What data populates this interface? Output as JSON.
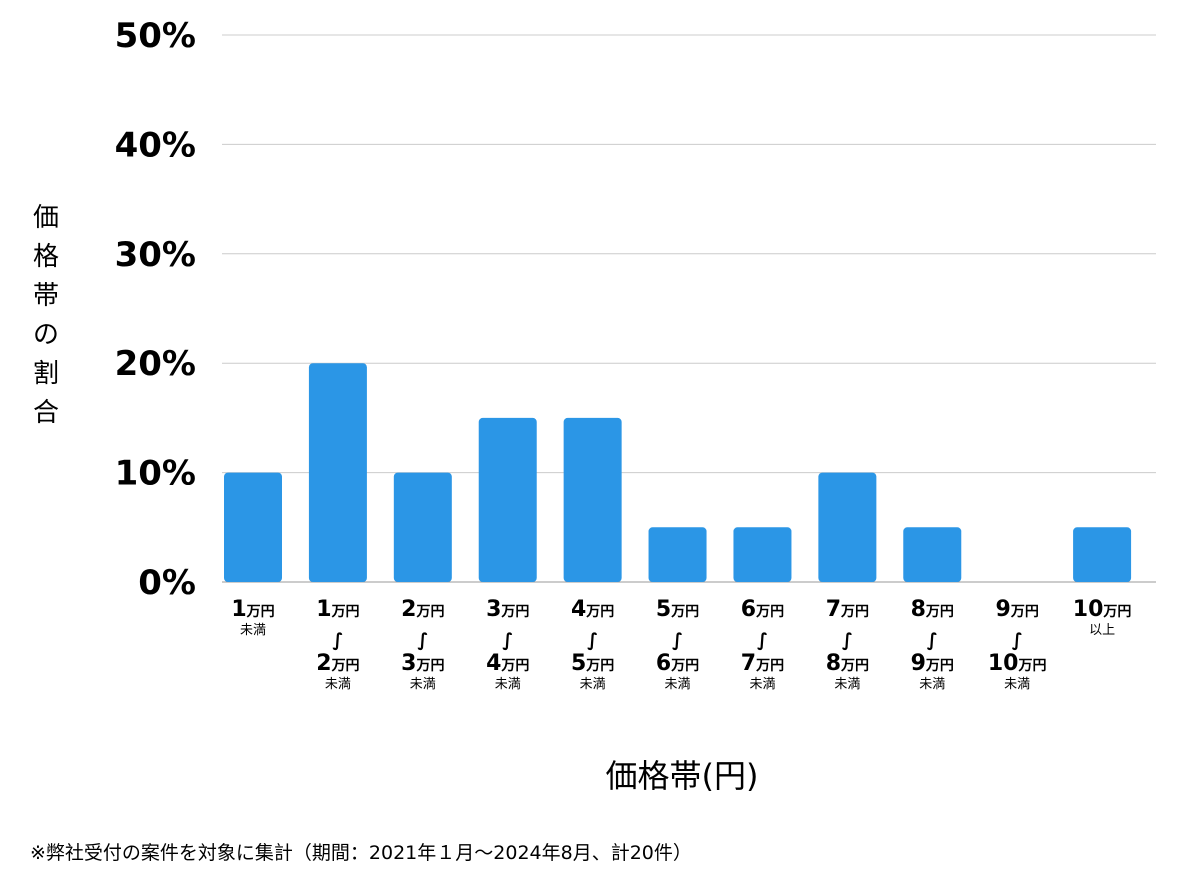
{
  "chart_data": {
    "type": "bar",
    "categories": [
      {
        "lines": [
          {
            "num": "1",
            "unit": "万円"
          }
        ],
        "sub": "未満"
      },
      {
        "lines": [
          {
            "num": "1",
            "unit": "万円"
          },
          {
            "tilde": "∫"
          },
          {
            "num": "2",
            "unit": "万円"
          }
        ],
        "sub": "未満"
      },
      {
        "lines": [
          {
            "num": "2",
            "unit": "万円"
          },
          {
            "tilde": "∫"
          },
          {
            "num": "3",
            "unit": "万円"
          }
        ],
        "sub": "未満"
      },
      {
        "lines": [
          {
            "num": "3",
            "unit": "万円"
          },
          {
            "tilde": "∫"
          },
          {
            "num": "4",
            "unit": "万円"
          }
        ],
        "sub": "未満"
      },
      {
        "lines": [
          {
            "num": "4",
            "unit": "万円"
          },
          {
            "tilde": "∫"
          },
          {
            "num": "5",
            "unit": "万円"
          }
        ],
        "sub": "未満"
      },
      {
        "lines": [
          {
            "num": "5",
            "unit": "万円"
          },
          {
            "tilde": "∫"
          },
          {
            "num": "6",
            "unit": "万円"
          }
        ],
        "sub": "未満"
      },
      {
        "lines": [
          {
            "num": "6",
            "unit": "万円"
          },
          {
            "tilde": "∫"
          },
          {
            "num": "7",
            "unit": "万円"
          }
        ],
        "sub": "未満"
      },
      {
        "lines": [
          {
            "num": "7",
            "unit": "万円"
          },
          {
            "tilde": "∫"
          },
          {
            "num": "8",
            "unit": "万円"
          }
        ],
        "sub": "未満"
      },
      {
        "lines": [
          {
            "num": "8",
            "unit": "万円"
          },
          {
            "tilde": "∫"
          },
          {
            "num": "9",
            "unit": "万円"
          }
        ],
        "sub": "未満"
      },
      {
        "lines": [
          {
            "num": "9",
            "unit": "万円"
          },
          {
            "tilde": "∫"
          },
          {
            "num": "10",
            "unit": "万円"
          }
        ],
        "sub": "未満"
      },
      {
        "lines": [
          {
            "num": "10",
            "unit": "万円"
          }
        ],
        "sub": "以上"
      }
    ],
    "values": [
      10,
      20,
      10,
      15,
      15,
      5,
      5,
      10,
      5,
      0,
      5
    ],
    "ylim": [
      0,
      50
    ],
    "yticks": [
      "0%",
      "10%",
      "20%",
      "30%",
      "40%",
      "50%"
    ],
    "ytick_values": [
      0,
      10,
      20,
      30,
      40,
      50
    ],
    "ylabel": "価格帯の割合",
    "xlabel": "価格帯(円)",
    "grid": true,
    "bar_color": "#2b96e6",
    "grid_color": "#cccccc"
  },
  "footnote": "※弊社受付の案件を対象に集計（期間：2021年１月〜2024年8月、計20件）"
}
